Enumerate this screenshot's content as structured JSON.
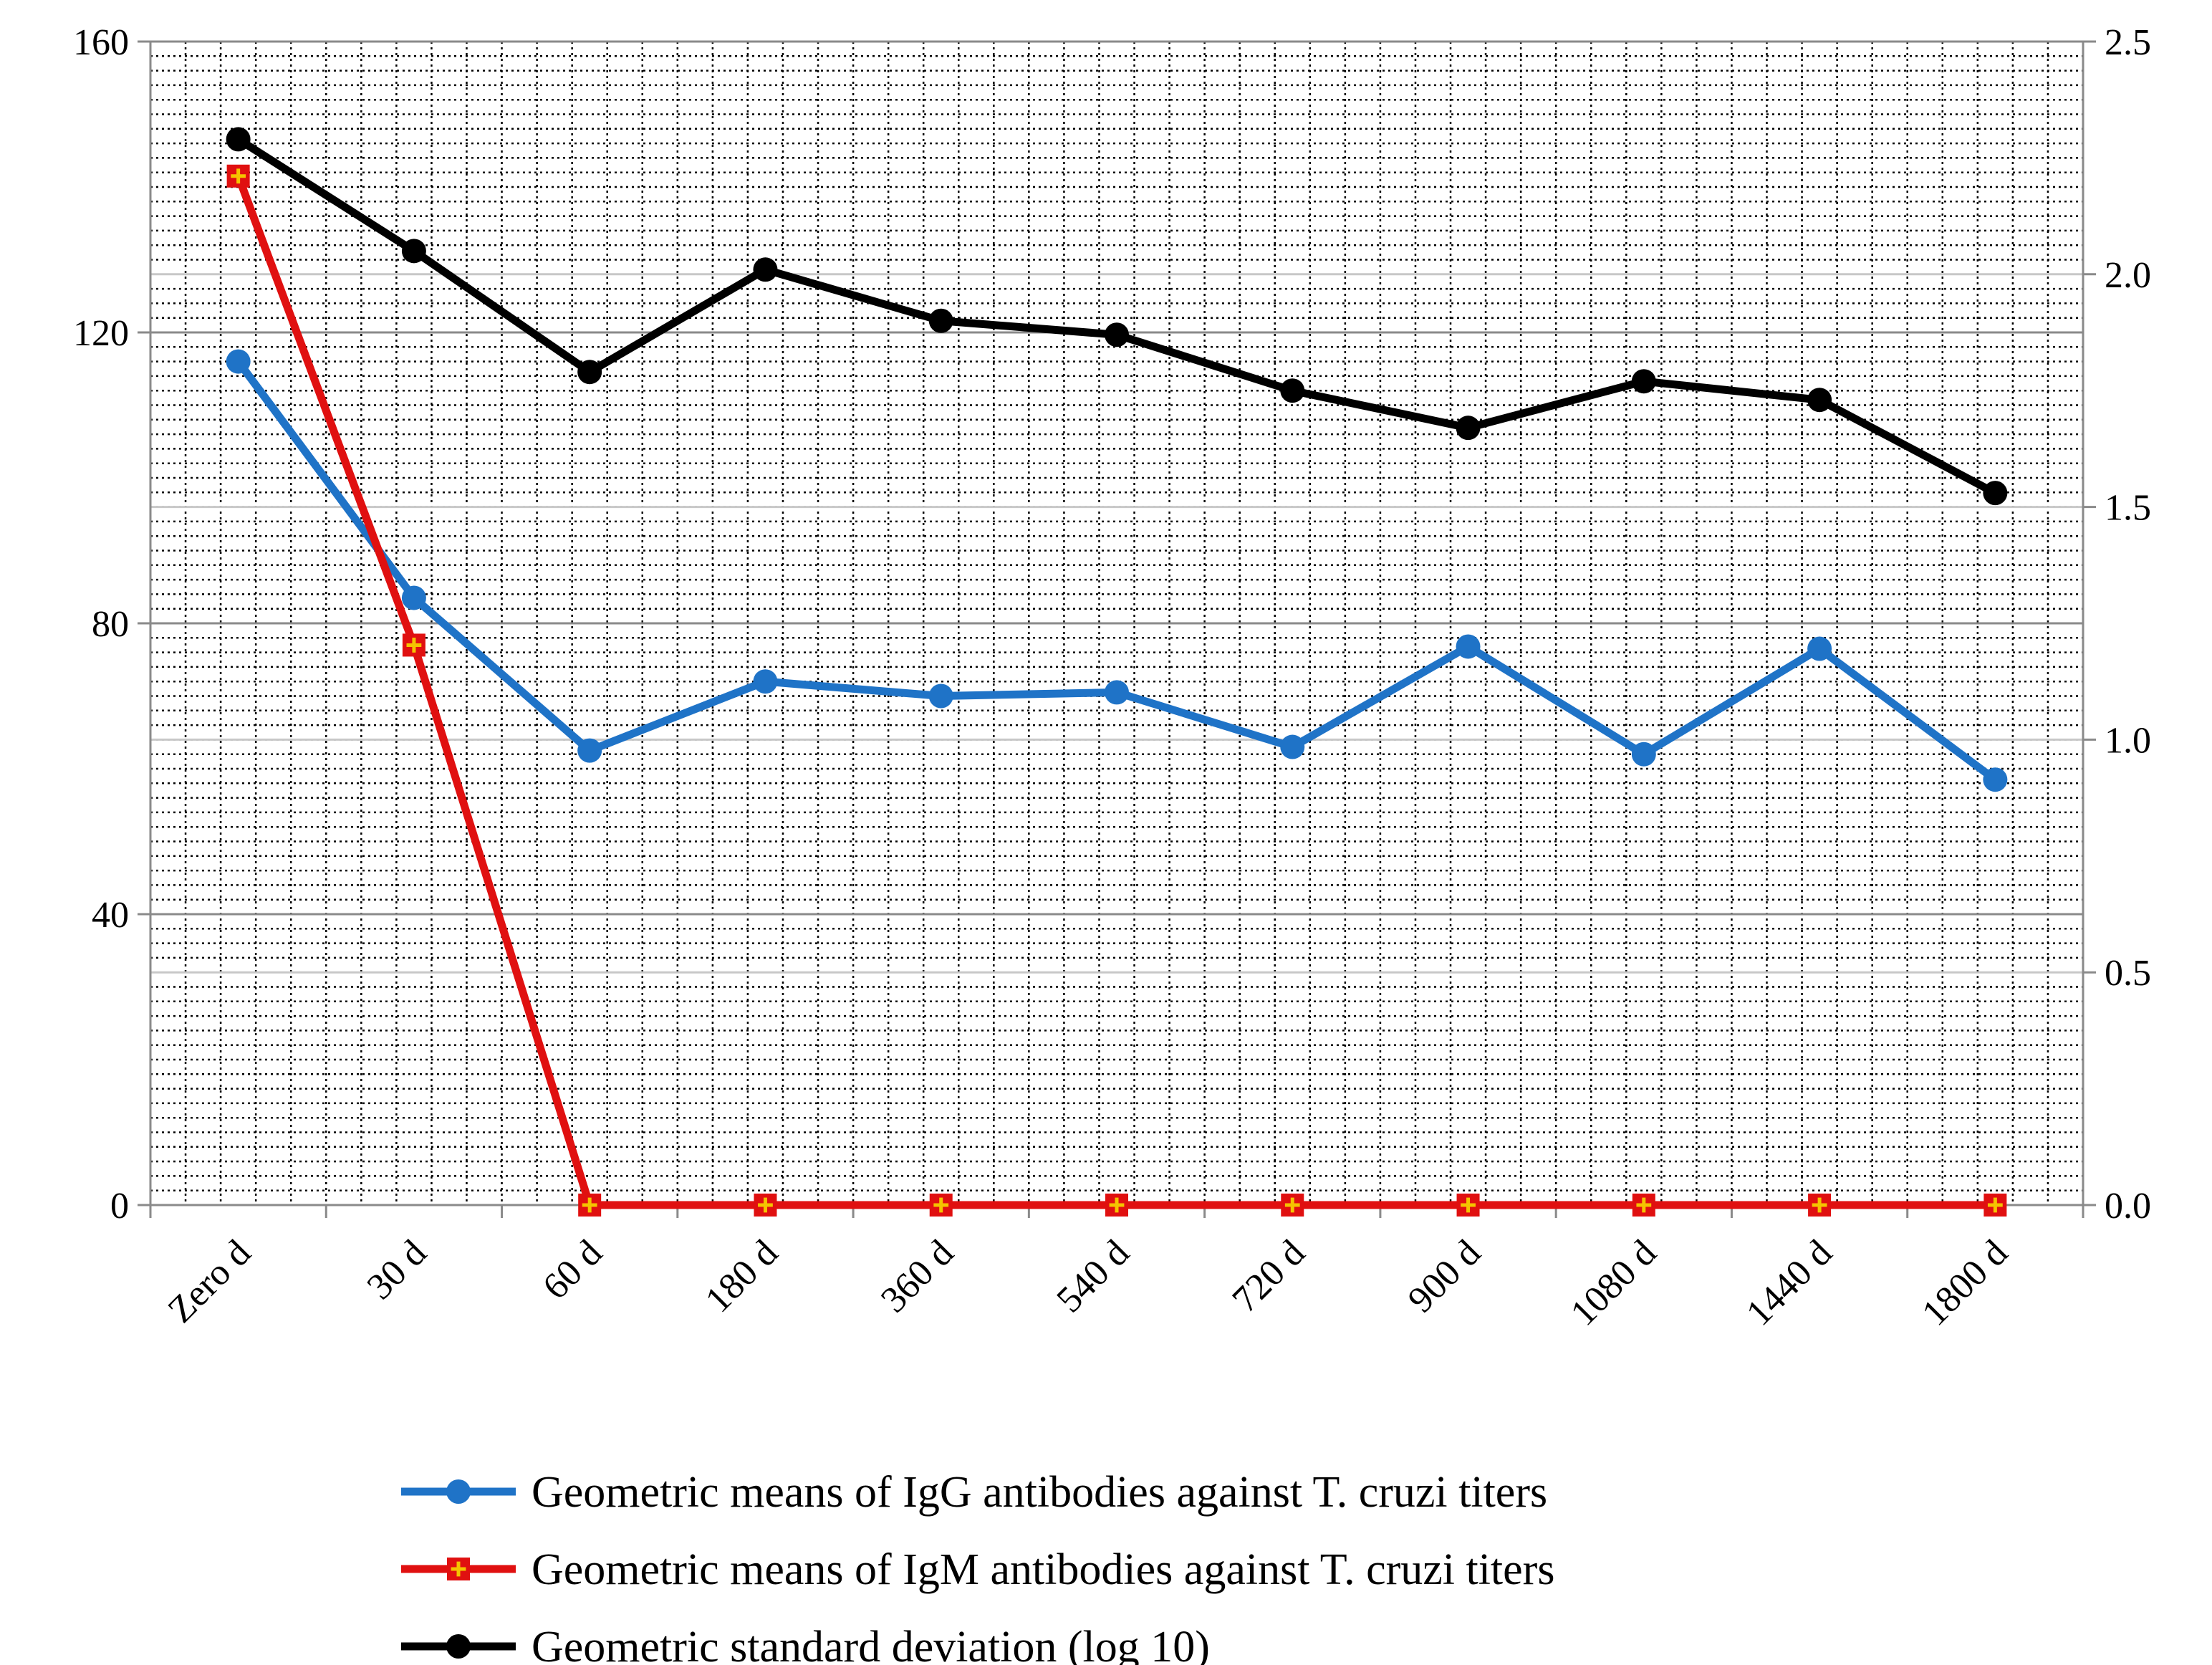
{
  "chart_data": {
    "type": "line",
    "title": "",
    "xlabel": "",
    "ylabel": "",
    "y2label": "",
    "categories": [
      "Zero d",
      "30 d",
      "60 d",
      "180 d",
      "360 d",
      "540 d",
      "720 d",
      "900 d",
      "1080 d",
      "1440 d",
      "1800 d"
    ],
    "ylim": [
      0,
      160
    ],
    "y2lim": [
      0,
      2.5
    ],
    "y_ticks": [
      "0",
      "40",
      "80",
      "120",
      "160"
    ],
    "y2_ticks": [
      "0.0",
      "0.5",
      "1.0",
      "1.5",
      "2.0",
      "2.5"
    ],
    "grid": true,
    "legend_position": "bottom",
    "series": [
      {
        "name": "Geometric means of IgG antibodies against T. cruzi titers",
        "axis": "left",
        "marker": "circle",
        "color": "#1f73c7",
        "values": [
          116,
          83.5,
          62.5,
          72,
          70,
          70.5,
          63,
          76.8,
          62,
          76.5,
          58.5
        ]
      },
      {
        "name": "Geometric means of IgM antibodies against T. cruzi titers",
        "axis": "left",
        "marker": "square-plus",
        "color": "#e01010",
        "values": [
          141.5,
          77,
          0,
          0,
          0,
          0,
          0,
          0,
          0,
          0,
          0
        ]
      },
      {
        "name": "Geometric standard deviation (log 10)",
        "axis": "right",
        "marker": "circle",
        "color": "#000000",
        "values": [
          2.29,
          2.05,
          1.79,
          2.01,
          1.9,
          1.87,
          1.75,
          1.67,
          1.77,
          1.73,
          1.53
        ]
      }
    ]
  }
}
